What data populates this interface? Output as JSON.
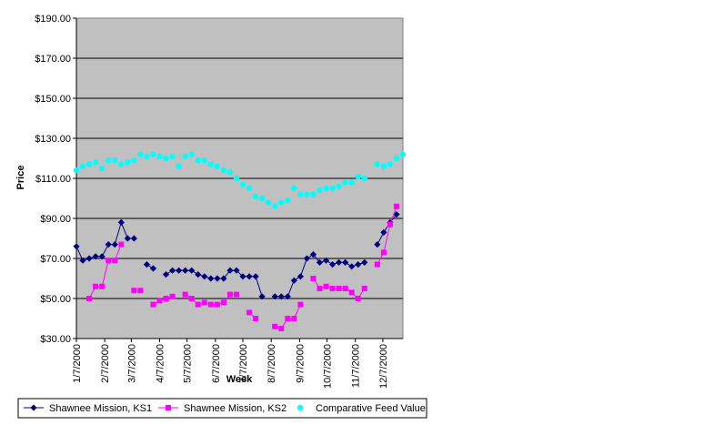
{
  "chart_data": {
    "type": "line",
    "title": "",
    "xlabel": "Week",
    "ylabel": "Price",
    "ylim": [
      30,
      190
    ],
    "yticks": [
      "$30.00",
      "$50.00",
      "$70.00",
      "$90.00",
      "$110.00",
      "$130.00",
      "$150.00",
      "$170.00",
      "$190.00"
    ],
    "xlim": [
      "2000-01-07",
      "2000-12-29"
    ],
    "xticks": [
      {
        "date": "2000-01-07",
        "label": "1/7/2000"
      },
      {
        "date": "2000-02-07",
        "label": "2/7/2000"
      },
      {
        "date": "2000-03-07",
        "label": "3/7/2000"
      },
      {
        "date": "2000-04-07",
        "label": "4/7/2000"
      },
      {
        "date": "2000-05-07",
        "label": "5/7/2000"
      },
      {
        "date": "2000-06-07",
        "label": "6/7/2000"
      },
      {
        "date": "2000-07-07",
        "label": "7/7/2000"
      },
      {
        "date": "2000-08-07",
        "label": "8/7/2000"
      },
      {
        "date": "2000-09-07",
        "label": "9/7/2000"
      },
      {
        "date": "2000-10-07",
        "label": "10/7/2000"
      },
      {
        "date": "2000-11-07",
        "label": "11/7/2000"
      },
      {
        "date": "2000-12-07",
        "label": "12/7/2000"
      }
    ],
    "grid": "horizontal",
    "plot_background": "#c0c0c0",
    "legend_position": "bottom",
    "series": [
      {
        "name": "Shawnee Mission, KS1",
        "color": "#000080",
        "marker": "diamond",
        "line": true,
        "points": [
          [
            "2000-01-07",
            76
          ],
          [
            "2000-01-14",
            69
          ],
          [
            "2000-01-21",
            70
          ],
          [
            "2000-01-28",
            71
          ],
          [
            "2000-02-04",
            71
          ],
          [
            "2000-02-11",
            77
          ],
          [
            "2000-02-18",
            77
          ],
          [
            "2000-02-25",
            88
          ],
          [
            "2000-03-03",
            80
          ],
          [
            "2000-03-10",
            80
          ],
          [
            "2000-03-24",
            67
          ],
          [
            "2000-03-31",
            65
          ],
          [
            "2000-04-14",
            62
          ],
          [
            "2000-04-21",
            64
          ],
          [
            "2000-04-28",
            64
          ],
          [
            "2000-05-05",
            64
          ],
          [
            "2000-05-12",
            64
          ],
          [
            "2000-05-19",
            62
          ],
          [
            "2000-05-26",
            61
          ],
          [
            "2000-06-02",
            60
          ],
          [
            "2000-06-09",
            60
          ],
          [
            "2000-06-16",
            60
          ],
          [
            "2000-06-23",
            64
          ],
          [
            "2000-06-30",
            64
          ],
          [
            "2000-07-07",
            61
          ],
          [
            "2000-07-14",
            61
          ],
          [
            "2000-07-21",
            61
          ],
          [
            "2000-07-28",
            51
          ],
          [
            "2000-08-11",
            51
          ],
          [
            "2000-08-18",
            51
          ],
          [
            "2000-08-25",
            51
          ],
          [
            "2000-09-01",
            59
          ],
          [
            "2000-09-08",
            61
          ],
          [
            "2000-09-15",
            70
          ],
          [
            "2000-09-22",
            72
          ],
          [
            "2000-09-29",
            68
          ],
          [
            "2000-10-06",
            69
          ],
          [
            "2000-10-13",
            67
          ],
          [
            "2000-10-20",
            68
          ],
          [
            "2000-10-27",
            68
          ],
          [
            "2000-11-03",
            66
          ],
          [
            "2000-11-10",
            67
          ],
          [
            "2000-11-17",
            68
          ],
          [
            "2000-12-01",
            77
          ],
          [
            "2000-12-08",
            83
          ],
          [
            "2000-12-15",
            88
          ],
          [
            "2000-12-22",
            92
          ]
        ]
      },
      {
        "name": "Shawnee Mission, KS2",
        "color": "#ff00ff",
        "marker": "square",
        "line": true,
        "points": [
          [
            "2000-01-21",
            50
          ],
          [
            "2000-01-28",
            56
          ],
          [
            "2000-02-04",
            56
          ],
          [
            "2000-02-11",
            69
          ],
          [
            "2000-02-18",
            69
          ],
          [
            "2000-02-25",
            77
          ],
          [
            "2000-03-10",
            54
          ],
          [
            "2000-03-17",
            54
          ],
          [
            "2000-03-31",
            47
          ],
          [
            "2000-04-07",
            49
          ],
          [
            "2000-04-14",
            50
          ],
          [
            "2000-04-21",
            51
          ],
          [
            "2000-05-05",
            52
          ],
          [
            "2000-05-12",
            50
          ],
          [
            "2000-05-19",
            47
          ],
          [
            "2000-05-26",
            48
          ],
          [
            "2000-06-02",
            47
          ],
          [
            "2000-06-09",
            47
          ],
          [
            "2000-06-16",
            48
          ],
          [
            "2000-06-23",
            52
          ],
          [
            "2000-06-30",
            52
          ],
          [
            "2000-07-14",
            43
          ],
          [
            "2000-07-21",
            40
          ],
          [
            "2000-08-11",
            36
          ],
          [
            "2000-08-18",
            35
          ],
          [
            "2000-08-25",
            40
          ],
          [
            "2000-09-01",
            40
          ],
          [
            "2000-09-08",
            47
          ],
          [
            "2000-09-22",
            60
          ],
          [
            "2000-09-29",
            55
          ],
          [
            "2000-10-06",
            56
          ],
          [
            "2000-10-13",
            55
          ],
          [
            "2000-10-20",
            55
          ],
          [
            "2000-10-27",
            55
          ],
          [
            "2000-11-03",
            53
          ],
          [
            "2000-11-10",
            50
          ],
          [
            "2000-11-17",
            55
          ],
          [
            "2000-12-01",
            67
          ],
          [
            "2000-12-08",
            73
          ],
          [
            "2000-12-15",
            87
          ],
          [
            "2000-12-22",
            96
          ]
        ]
      },
      {
        "name": "Comparative Feed Value",
        "color": "#00ffff",
        "marker": "circle",
        "line": false,
        "points": [
          [
            "2000-01-07",
            114
          ],
          [
            "2000-01-14",
            116
          ],
          [
            "2000-01-21",
            117
          ],
          [
            "2000-01-28",
            118
          ],
          [
            "2000-02-04",
            115
          ],
          [
            "2000-02-11",
            119
          ],
          [
            "2000-02-18",
            119
          ],
          [
            "2000-02-25",
            117
          ],
          [
            "2000-03-03",
            118
          ],
          [
            "2000-03-10",
            119
          ],
          [
            "2000-03-17",
            122
          ],
          [
            "2000-03-24",
            121
          ],
          [
            "2000-03-31",
            122
          ],
          [
            "2000-04-07",
            121
          ],
          [
            "2000-04-14",
            120
          ],
          [
            "2000-04-21",
            121
          ],
          [
            "2000-04-28",
            116
          ],
          [
            "2000-05-05",
            121
          ],
          [
            "2000-05-12",
            122
          ],
          [
            "2000-05-19",
            119
          ],
          [
            "2000-05-26",
            119
          ],
          [
            "2000-06-02",
            117
          ],
          [
            "2000-06-09",
            116
          ],
          [
            "2000-06-16",
            114
          ],
          [
            "2000-06-23",
            113
          ],
          [
            "2000-06-30",
            110
          ],
          [
            "2000-07-07",
            107
          ],
          [
            "2000-07-14",
            105
          ],
          [
            "2000-07-21",
            101
          ],
          [
            "2000-07-28",
            100
          ],
          [
            "2000-08-04",
            98
          ],
          [
            "2000-08-11",
            96
          ],
          [
            "2000-08-18",
            98
          ],
          [
            "2000-08-25",
            99
          ],
          [
            "2000-09-01",
            105
          ],
          [
            "2000-09-08",
            102
          ],
          [
            "2000-09-15",
            102
          ],
          [
            "2000-09-22",
            102
          ],
          [
            "2000-09-29",
            104
          ],
          [
            "2000-10-06",
            105
          ],
          [
            "2000-10-13",
            105
          ],
          [
            "2000-10-20",
            106
          ],
          [
            "2000-10-27",
            108
          ],
          [
            "2000-11-03",
            108
          ],
          [
            "2000-11-10",
            111
          ],
          [
            "2000-11-17",
            110
          ],
          [
            "2000-12-01",
            117
          ],
          [
            "2000-12-08",
            116
          ],
          [
            "2000-12-15",
            117
          ],
          [
            "2000-12-22",
            120
          ],
          [
            "2000-12-29",
            122
          ]
        ]
      }
    ]
  }
}
